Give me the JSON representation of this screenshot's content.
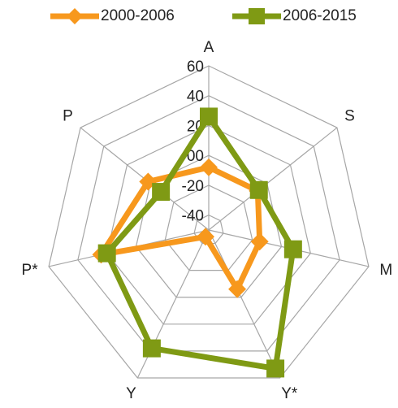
{
  "chart_data": {
    "type": "radar",
    "categories": [
      "A",
      "S",
      "M",
      "Y*",
      "Y",
      "P*",
      "P"
    ],
    "ylim": [
      -50,
      60
    ],
    "yticks": [
      -40,
      -20,
      {
        "value": 0,
        "label": "00"
      },
      20,
      40,
      60
    ],
    "grid": true,
    "legend": "top",
    "series": [
      {
        "name": "2000-2006",
        "color": "#f7981d",
        "marker": "diamond",
        "values": [
          -8,
          -8,
          -15,
          -6,
          -45,
          24,
          2
        ]
      },
      {
        "name": "2006-2015",
        "color": "#7f9a14",
        "marker": "square",
        "values": [
          26,
          -7,
          8,
          53,
          38,
          20,
          -9
        ]
      }
    ]
  }
}
